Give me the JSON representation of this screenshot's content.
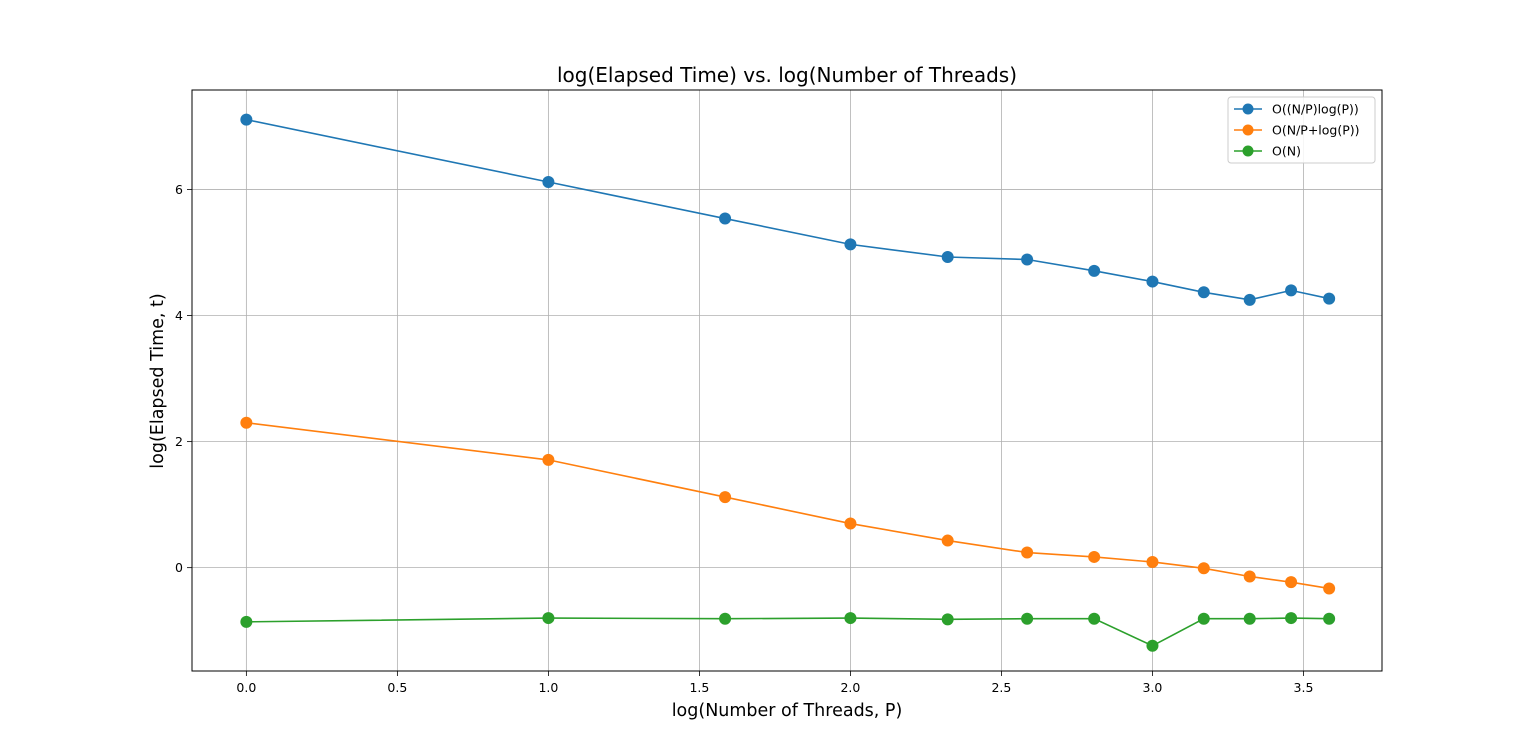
{
  "chart_data": {
    "type": "line",
    "title": "log(Elapsed Time) vs. log(Number of Threads)",
    "xlabel": "log(Number of Threads, P)",
    "ylabel": "log(Elapsed Time, t)",
    "xlim": [
      -0.18,
      3.76
    ],
    "ylim": [
      -1.64,
      7.58
    ],
    "xticks": [
      0.0,
      0.5,
      1.0,
      1.5,
      2.0,
      2.5,
      3.0,
      3.5
    ],
    "xtick_labels": [
      "0.0",
      "0.5",
      "1.0",
      "1.5",
      "2.0",
      "2.5",
      "3.0",
      "3.5"
    ],
    "yticks": [
      0,
      2,
      4,
      6
    ],
    "ytick_labels": [
      "0",
      "2",
      "4",
      "6"
    ],
    "grid": true,
    "legend_position": "top-right",
    "x": [
      0.0,
      1.0,
      1.585,
      2.0,
      2.322,
      2.585,
      2.807,
      3.0,
      3.17,
      3.322,
      3.459,
      3.585
    ],
    "series": [
      {
        "name": "O((N/P)log(P))",
        "color": "#1f77b4",
        "values": [
          7.11,
          6.12,
          5.54,
          5.13,
          4.93,
          4.89,
          4.71,
          4.54,
          4.37,
          4.25,
          4.4,
          4.27
        ]
      },
      {
        "name": "O(N/P+log(P))",
        "color": "#ff7f0e",
        "values": [
          2.3,
          1.71,
          1.12,
          0.7,
          0.43,
          0.24,
          0.17,
          0.09,
          -0.01,
          -0.14,
          -0.23,
          -0.33
        ]
      },
      {
        "name": "O(N)",
        "color": "#2ca02c",
        "values": [
          -0.86,
          -0.8,
          -0.81,
          -0.8,
          -0.82,
          -0.81,
          -0.81,
          -1.24,
          -0.81,
          -0.81,
          -0.8,
          -0.81
        ]
      }
    ]
  }
}
